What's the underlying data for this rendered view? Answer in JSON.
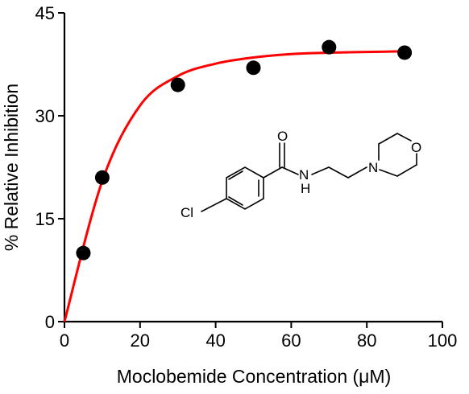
{
  "chart_data": {
    "type": "scatter",
    "xlabel": "Moclobemide Concentration (μM)",
    "ylabel": "% Relative Inhibition",
    "xlim": [
      0,
      100
    ],
    "ylim": [
      0,
      45
    ],
    "xticks": [
      0,
      20,
      40,
      60,
      80,
      100
    ],
    "yticks": [
      0,
      15,
      30,
      45
    ],
    "grid": false,
    "series": [
      {
        "kind": "points",
        "color": "#000000",
        "x": [
          5,
          10,
          30,
          50,
          70,
          90
        ],
        "y": [
          10,
          21,
          34.5,
          37,
          40,
          39.2
        ]
      },
      {
        "kind": "fit",
        "model": "hyperbola",
        "color": "#ff0000",
        "x": [
          0,
          10,
          20,
          30,
          40,
          50,
          60,
          70,
          80,
          90
        ],
        "y": [
          0,
          20.5,
          31.5,
          35.8,
          37.6,
          38.5,
          39.0,
          39.2,
          39.3,
          39.4
        ]
      }
    ]
  },
  "structure": {
    "atoms": {
      "chlorine": "Cl",
      "oxygen_carbonyl": "O",
      "amide_nh": "H",
      "amide_n": "N",
      "ring_n": "N",
      "ring_o": "O"
    }
  }
}
